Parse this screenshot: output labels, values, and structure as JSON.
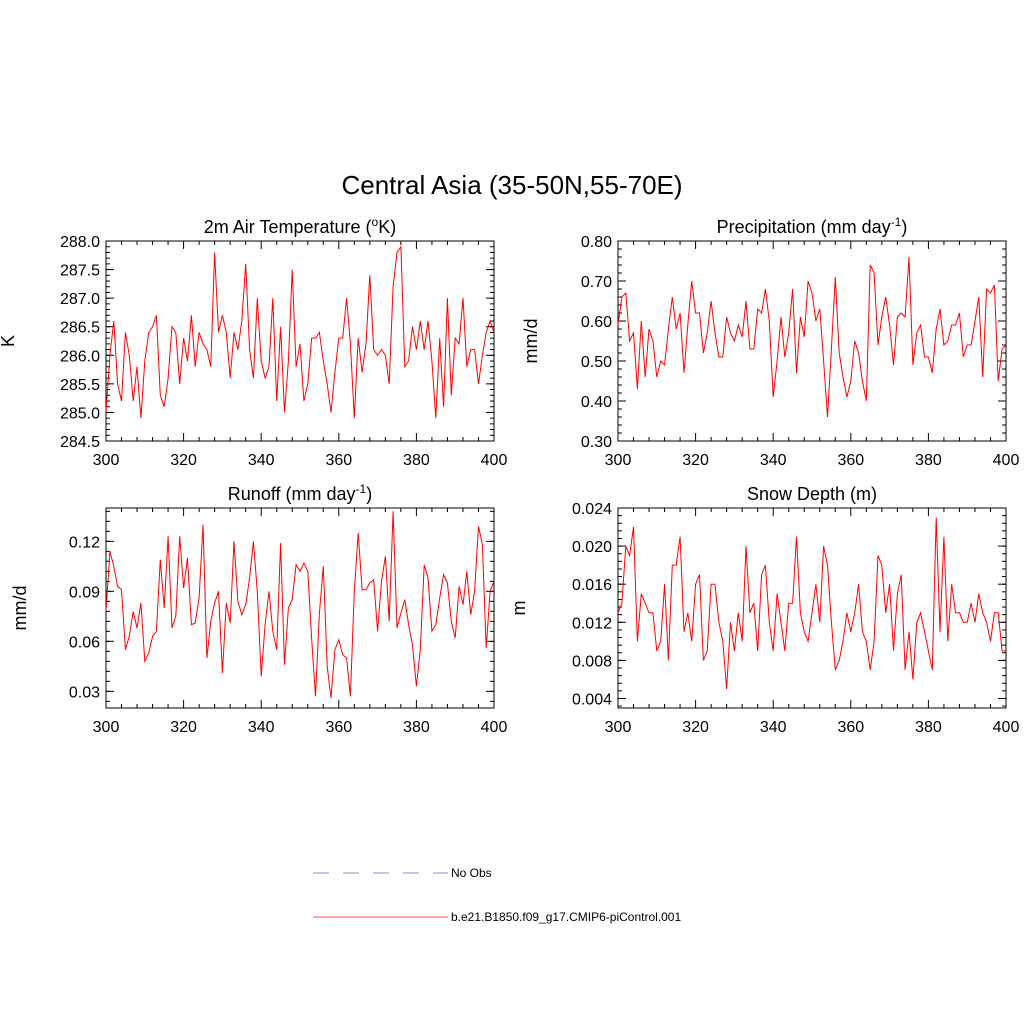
{
  "main_title": "Central Asia (35-50N,55-70E)",
  "legend": [
    {
      "label": "No Obs",
      "style": "dashed",
      "color": "#8c8cd9"
    },
    {
      "label": "b.e21.B1850.f09_g17.CMIP6-piControl.001",
      "style": "solid",
      "color": "#ff4d4d"
    }
  ],
  "series_color": "#ff0000",
  "chart_data": [
    {
      "type": "line",
      "title_main": "2m Air Temperature (",
      "title_sup": "o",
      "title_end": "K)",
      "title_after_sup": "",
      "ylabel": "K",
      "xlim": [
        300,
        400
      ],
      "ylim": [
        284.5,
        288.0
      ],
      "xticks": [
        300,
        320,
        340,
        360,
        380,
        400
      ],
      "xtick_labels": [
        "300",
        "320",
        "340",
        "360",
        "380",
        "400"
      ],
      "yticks": [
        284.5,
        285.0,
        285.5,
        286.0,
        286.5,
        287.0,
        287.5,
        288.0
      ],
      "ytick_labels": [
        "284.5",
        "285.0",
        "285.5",
        "286.0",
        "286.5",
        "287.0",
        "287.5",
        "288.0"
      ],
      "x_start": 300,
      "values": [
        285.0,
        286.0,
        286.6,
        285.5,
        285.2,
        286.4,
        286.0,
        285.2,
        285.8,
        284.9,
        285.9,
        286.4,
        286.5,
        286.7,
        285.3,
        285.1,
        285.6,
        286.5,
        286.4,
        285.5,
        286.3,
        285.9,
        286.7,
        285.8,
        286.4,
        286.2,
        286.1,
        285.8,
        287.8,
        286.4,
        286.7,
        286.4,
        285.6,
        286.4,
        286.1,
        286.6,
        287.6,
        286.1,
        285.6,
        287.0,
        285.9,
        285.6,
        285.8,
        287.0,
        285.2,
        286.5,
        285.0,
        285.9,
        287.5,
        285.8,
        286.2,
        285.2,
        285.5,
        286.3,
        286.3,
        286.4,
        285.9,
        285.5,
        285.0,
        285.7,
        286.3,
        286.3,
        287.0,
        286.2,
        284.9,
        286.3,
        285.7,
        286.2,
        287.4,
        286.1,
        286.0,
        286.1,
        286.0,
        285.5,
        287.2,
        287.8,
        287.9,
        285.8,
        285.9,
        286.5,
        286.1,
        286.6,
        286.1,
        286.6,
        285.9,
        284.9,
        286.3,
        285.1,
        287.0,
        285.3,
        286.3,
        286.2,
        287.0,
        285.8,
        286.1,
        286.1,
        285.5,
        286.0,
        286.4,
        286.6,
        286.4
      ]
    },
    {
      "type": "line",
      "title_main": "Precipitation (mm day",
      "title_sup": "-1",
      "title_end": ")",
      "ylabel": "mm/d",
      "xlim": [
        300,
        400
      ],
      "ylim": [
        0.3,
        0.8
      ],
      "xticks": [
        300,
        320,
        340,
        360,
        380,
        400
      ],
      "xtick_labels": [
        "300",
        "320",
        "340",
        "360",
        "380",
        "400"
      ],
      "yticks": [
        0.3,
        0.4,
        0.5,
        0.6,
        0.7,
        0.8
      ],
      "ytick_labels": [
        "0.30",
        "0.40",
        "0.50",
        "0.60",
        "0.70",
        "0.80"
      ],
      "x_start": 300,
      "values": [
        0.59,
        0.66,
        0.67,
        0.55,
        0.57,
        0.43,
        0.6,
        0.46,
        0.58,
        0.55,
        0.46,
        0.5,
        0.49,
        0.58,
        0.66,
        0.58,
        0.62,
        0.47,
        0.59,
        0.7,
        0.62,
        0.62,
        0.52,
        0.57,
        0.65,
        0.57,
        0.51,
        0.51,
        0.61,
        0.57,
        0.55,
        0.59,
        0.56,
        0.65,
        0.53,
        0.53,
        0.63,
        0.62,
        0.68,
        0.6,
        0.41,
        0.5,
        0.61,
        0.51,
        0.57,
        0.68,
        0.47,
        0.61,
        0.56,
        0.7,
        0.67,
        0.6,
        0.63,
        0.5,
        0.36,
        0.53,
        0.71,
        0.52,
        0.46,
        0.41,
        0.45,
        0.55,
        0.52,
        0.45,
        0.4,
        0.74,
        0.72,
        0.54,
        0.61,
        0.66,
        0.59,
        0.49,
        0.61,
        0.62,
        0.61,
        0.76,
        0.49,
        0.57,
        0.59,
        0.51,
        0.51,
        0.47,
        0.58,
        0.63,
        0.54,
        0.55,
        0.59,
        0.59,
        0.62,
        0.51,
        0.54,
        0.54,
        0.6,
        0.66,
        0.46,
        0.68,
        0.67,
        0.69,
        0.45,
        0.53,
        0.54
      ]
    },
    {
      "type": "line",
      "title_main": "Runoff (mm day",
      "title_sup": "-1",
      "title_end": ")",
      "ylabel": "mm/d",
      "xlim": [
        300,
        400
      ],
      "ylim": [
        0.02,
        0.14
      ],
      "xticks": [
        300,
        320,
        340,
        360,
        380,
        400
      ],
      "xtick_labels": [
        "300",
        "320",
        "340",
        "360",
        "380",
        "400"
      ],
      "yticks": [
        0.03,
        0.06,
        0.09,
        0.12
      ],
      "ytick_labels": [
        "0.03",
        "0.06",
        "0.09",
        "0.12"
      ],
      "x_start": 300,
      "values": [
        0.078,
        0.114,
        0.105,
        0.093,
        0.091,
        0.055,
        0.063,
        0.078,
        0.068,
        0.083,
        0.048,
        0.053,
        0.063,
        0.066,
        0.109,
        0.08,
        0.123,
        0.068,
        0.075,
        0.123,
        0.092,
        0.11,
        0.07,
        0.071,
        0.086,
        0.13,
        0.05,
        0.072,
        0.083,
        0.09,
        0.041,
        0.083,
        0.071,
        0.12,
        0.084,
        0.076,
        0.082,
        0.098,
        0.12,
        0.09,
        0.039,
        0.07,
        0.09,
        0.066,
        0.055,
        0.119,
        0.046,
        0.08,
        0.085,
        0.106,
        0.102,
        0.107,
        0.102,
        0.062,
        0.027,
        0.077,
        0.105,
        0.045,
        0.026,
        0.055,
        0.061,
        0.052,
        0.05,
        0.027,
        0.09,
        0.125,
        0.091,
        0.091,
        0.095,
        0.097,
        0.066,
        0.096,
        0.111,
        0.072,
        0.138,
        0.068,
        0.077,
        0.085,
        0.07,
        0.058,
        0.033,
        0.055,
        0.106,
        0.098,
        0.066,
        0.07,
        0.086,
        0.1,
        0.095,
        0.072,
        0.062,
        0.093,
        0.082,
        0.102,
        0.076,
        0.09,
        0.129,
        0.118,
        0.056,
        0.09,
        0.096
      ]
    },
    {
      "type": "line",
      "title_main": "Snow Depth (m)",
      "title_sup": "",
      "title_end": "",
      "ylabel": "m",
      "xlim": [
        300,
        400
      ],
      "ylim": [
        0.003,
        0.024
      ],
      "xticks": [
        300,
        320,
        340,
        360,
        380,
        400
      ],
      "xtick_labels": [
        "300",
        "320",
        "340",
        "360",
        "380",
        "400"
      ],
      "yticks": [
        0.004,
        0.008,
        0.012,
        0.016,
        0.02,
        0.024
      ],
      "ytick_labels": [
        "0.004",
        "0.008",
        "0.012",
        "0.016",
        "0.020",
        "0.024"
      ],
      "x_start": 300,
      "values": [
        0.013,
        0.014,
        0.02,
        0.019,
        0.022,
        0.01,
        0.015,
        0.014,
        0.013,
        0.013,
        0.009,
        0.01,
        0.016,
        0.008,
        0.018,
        0.018,
        0.021,
        0.011,
        0.013,
        0.01,
        0.016,
        0.017,
        0.008,
        0.009,
        0.016,
        0.016,
        0.012,
        0.01,
        0.005,
        0.012,
        0.009,
        0.013,
        0.01,
        0.02,
        0.013,
        0.014,
        0.009,
        0.017,
        0.018,
        0.012,
        0.009,
        0.015,
        0.012,
        0.009,
        0.014,
        0.014,
        0.021,
        0.013,
        0.011,
        0.01,
        0.013,
        0.016,
        0.012,
        0.02,
        0.018,
        0.012,
        0.007,
        0.008,
        0.01,
        0.013,
        0.011,
        0.013,
        0.016,
        0.011,
        0.01,
        0.007,
        0.01,
        0.019,
        0.018,
        0.013,
        0.016,
        0.009,
        0.015,
        0.017,
        0.007,
        0.011,
        0.006,
        0.012,
        0.013,
        0.011,
        0.009,
        0.007,
        0.023,
        0.011,
        0.021,
        0.01,
        0.016,
        0.013,
        0.013,
        0.012,
        0.012,
        0.014,
        0.012,
        0.015,
        0.013,
        0.012,
        0.01,
        0.013,
        0.013,
        0.009,
        0.009
      ]
    }
  ]
}
